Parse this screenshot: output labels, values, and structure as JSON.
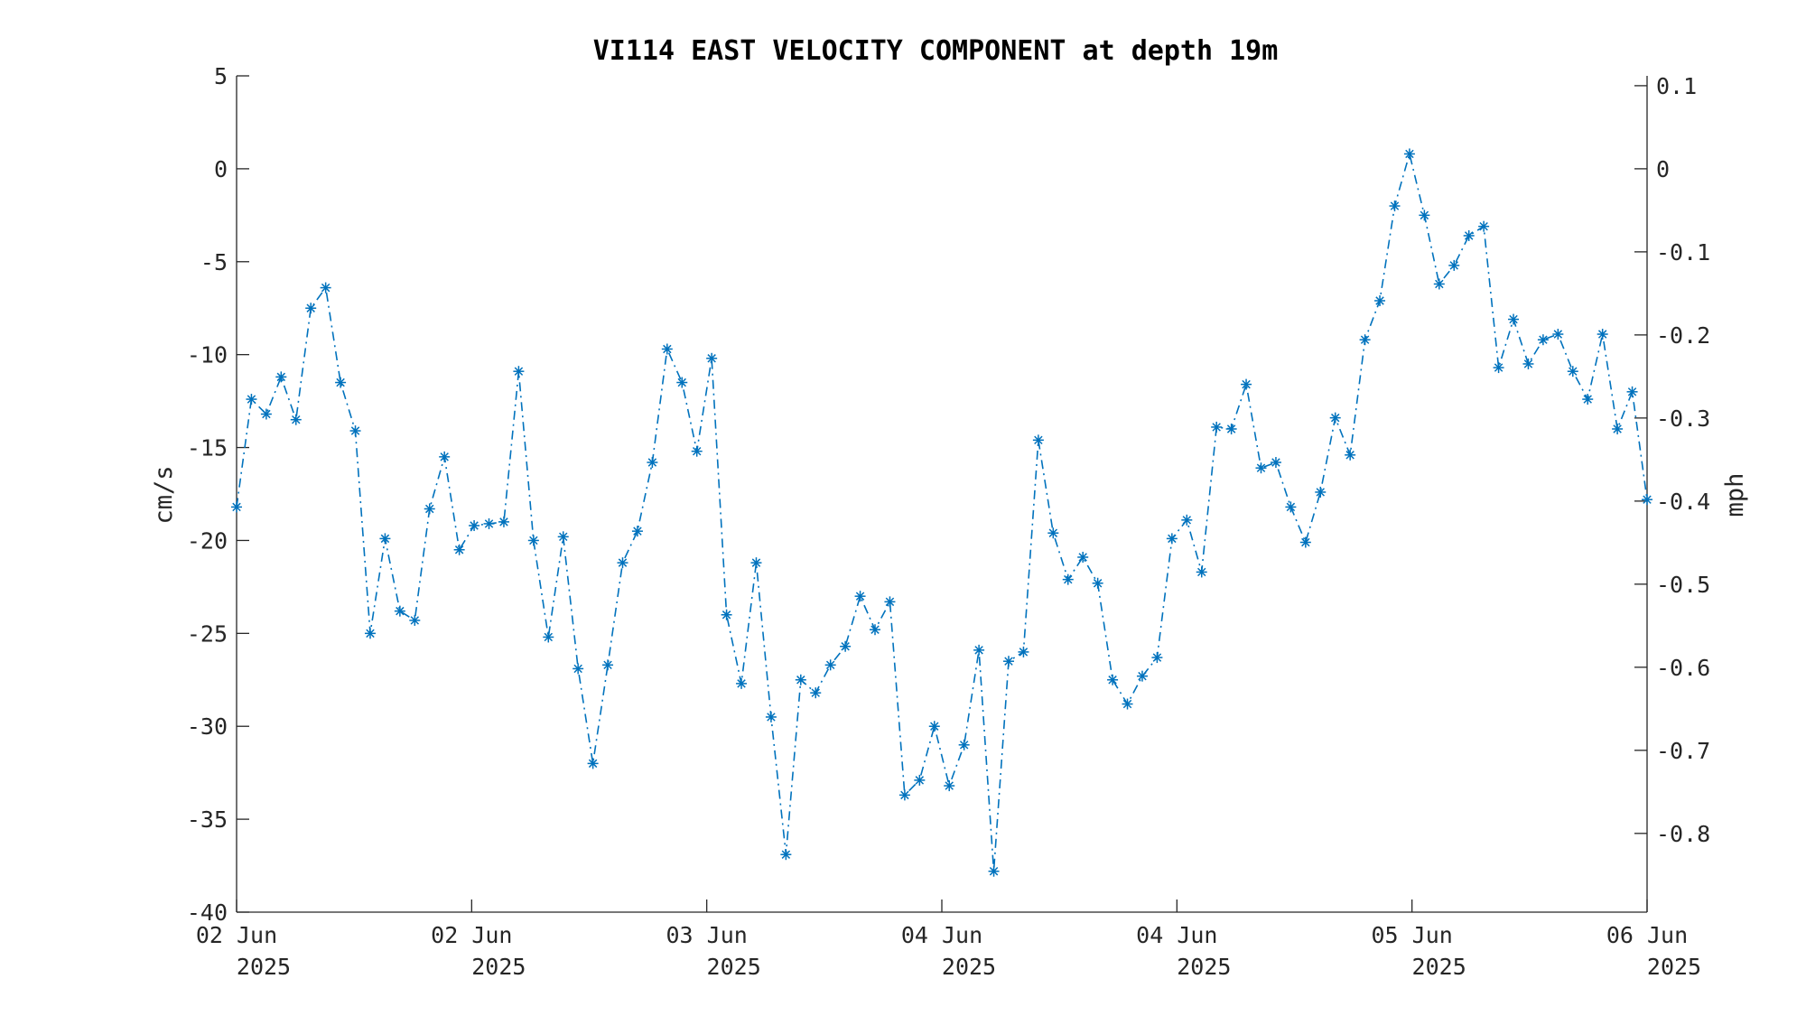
{
  "chart_data": {
    "type": "line",
    "title": "VI114 EAST VELOCITY COMPONENT at depth 19m",
    "ylabel": "cm/s",
    "ylabel_right": "mph",
    "ylim": [
      -40,
      5
    ],
    "y_ticks": [
      "5",
      "0",
      "-5",
      "-10",
      "-15",
      "-20",
      "-25",
      "-30",
      "-35",
      "-40"
    ],
    "y_tick_values": [
      5,
      0,
      -5,
      -10,
      -15,
      -20,
      -25,
      -30,
      -35,
      -40
    ],
    "y2lim": [
      -0.894775,
      0.111847
    ],
    "y2_ticks": [
      "0.1",
      "0",
      "-0.1",
      "-0.2",
      "-0.3",
      "-0.4",
      "-0.5",
      "-0.6",
      "-0.7",
      "-0.8"
    ],
    "y2_tick_values": [
      0.1,
      0,
      -0.1,
      -0.2,
      -0.3,
      -0.4,
      -0.5,
      -0.6,
      -0.7,
      -0.8
    ],
    "x_ticks": [
      {
        "line1": "02 Jun",
        "line2": "2025"
      },
      {
        "line1": "02 Jun",
        "line2": "2025"
      },
      {
        "line1": "03 Jun",
        "line2": "2025"
      },
      {
        "line1": "04 Jun",
        "line2": "2025"
      },
      {
        "line1": "04 Jun",
        "line2": "2025"
      },
      {
        "line1": "05 Jun",
        "line2": "2025"
      },
      {
        "line1": "06 Jun",
        "line2": "2025"
      }
    ],
    "grid": false,
    "legend": "none",
    "series": [
      {
        "color": "#0072BD",
        "marker": "asterisk",
        "line_style": "dash-dot",
        "values": [
          -18.2,
          -12.4,
          -13.2,
          -11.2,
          -13.5,
          -7.5,
          -6.4,
          -11.5,
          -14.1,
          -25.0,
          -19.9,
          -23.8,
          -24.3,
          -18.3,
          -15.5,
          -20.5,
          -19.2,
          -19.1,
          -19.0,
          -10.9,
          -20.0,
          -25.2,
          -19.8,
          -26.9,
          -32.0,
          -26.7,
          -21.2,
          -19.5,
          -15.8,
          -9.7,
          -11.5,
          -15.2,
          -10.2,
          -24.0,
          -27.7,
          -21.2,
          -29.5,
          -36.9,
          -27.5,
          -28.2,
          -26.7,
          -25.7,
          -23.0,
          -24.8,
          -23.3,
          -33.7,
          -32.9,
          -30.0,
          -33.2,
          -31.0,
          -25.9,
          -37.8,
          -26.5,
          -26.0,
          -14.6,
          -19.6,
          -22.1,
          -20.9,
          -22.3,
          -27.5,
          -28.8,
          -27.3,
          -26.3,
          -19.9,
          -18.9,
          -21.7,
          -13.9,
          -14.0,
          -11.6,
          -16.1,
          -15.8,
          -18.2,
          -20.1,
          -17.4,
          -13.4,
          -15.4,
          -9.2,
          -7.1,
          -2.0,
          0.8,
          -2.5,
          -6.2,
          -5.2,
          -3.6,
          -3.1,
          -10.7,
          -8.1,
          -10.5,
          -9.2,
          -8.9,
          -10.9,
          -12.4,
          -8.9,
          -14.0,
          -12.0,
          -17.8
        ]
      }
    ]
  }
}
